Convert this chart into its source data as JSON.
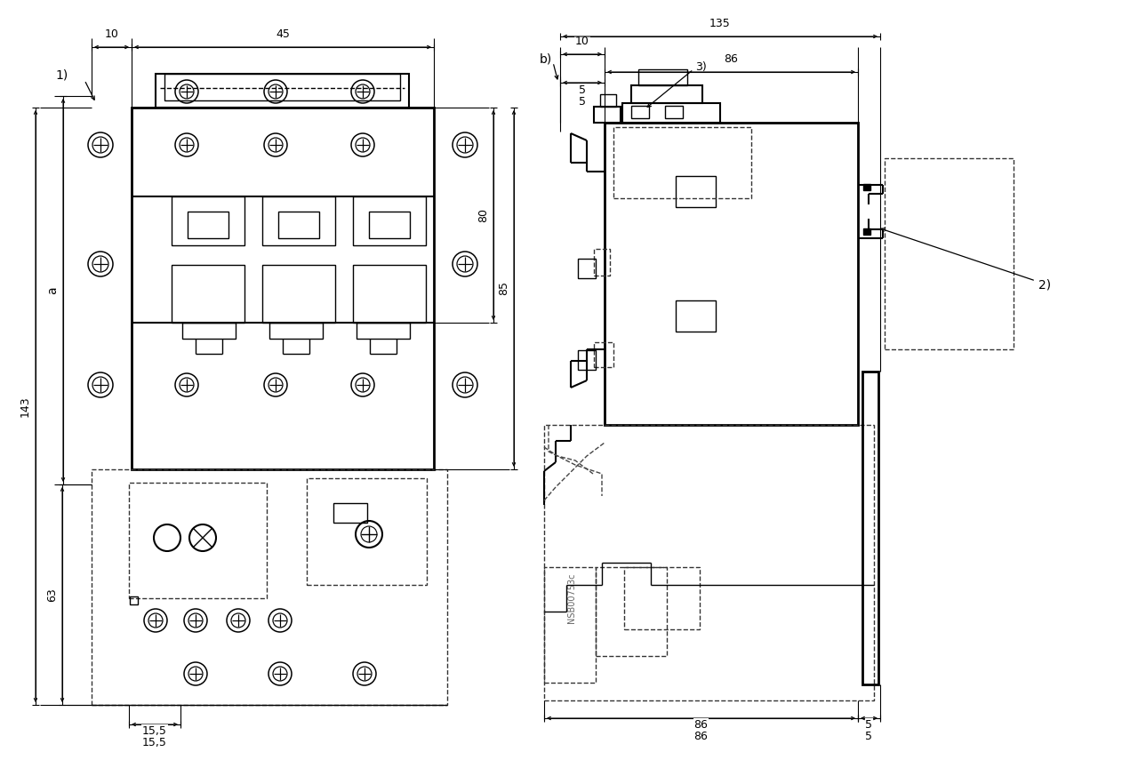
{
  "bg_color": "#ffffff",
  "line_color": "#000000",
  "dim_labels": {
    "d10_left": "10",
    "d45": "45",
    "d80": "80",
    "d85": "85",
    "d143": "143",
    "d63": "63",
    "da": "a",
    "d15_5": "15,5",
    "l1": "1)",
    "d10_right": "10",
    "d86_top": "86",
    "d135": "135",
    "d5_left": "5",
    "d86_bot": "86",
    "d5_right": "5",
    "lb": "b)",
    "l2": "2)",
    "l3": "3)",
    "nsb": "NSB00753c"
  }
}
